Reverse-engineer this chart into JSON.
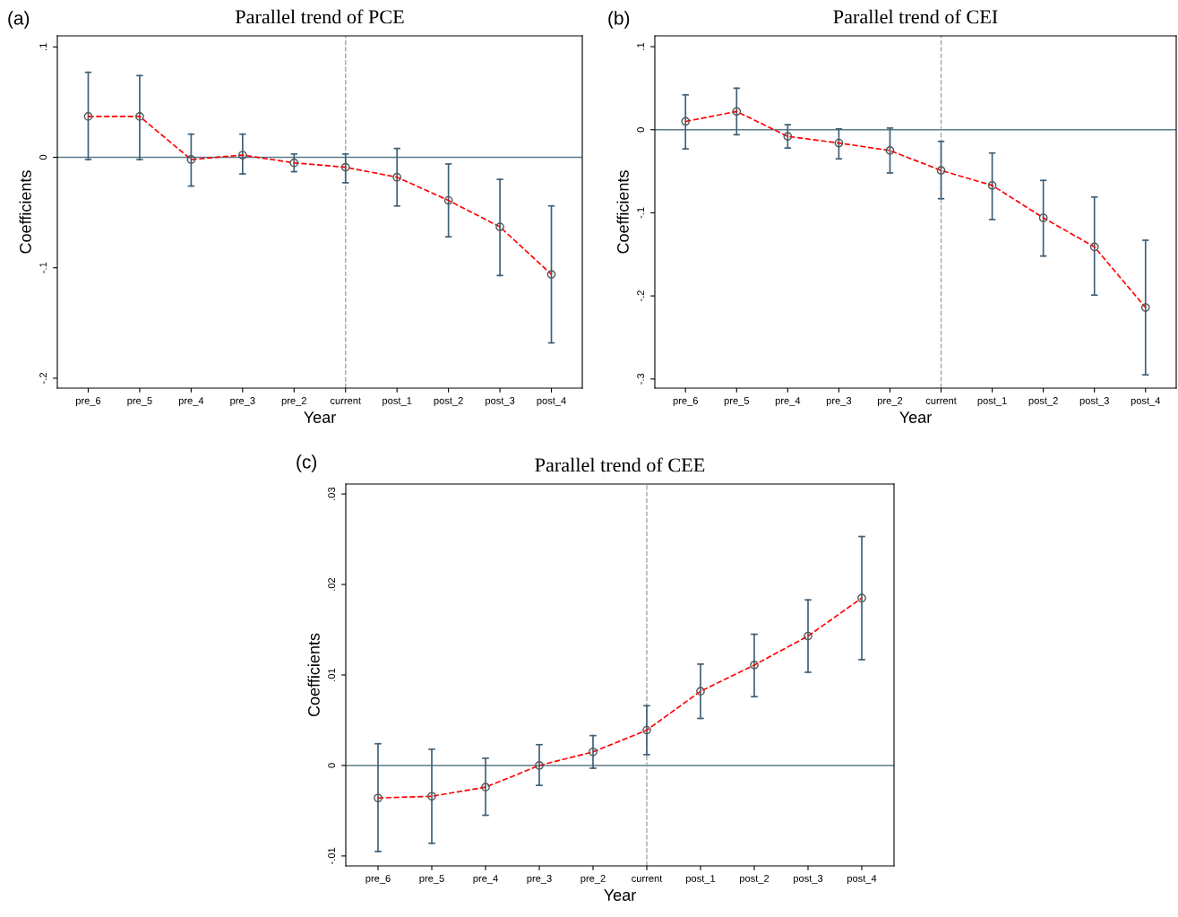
{
  "chart_data": [
    {
      "type": "line",
      "title": "Parallel trend of PCE",
      "xlabel": "Year",
      "ylabel": "Coefficients",
      "annotations": [
        "(a)"
      ],
      "categories": [
        "pre_6",
        "pre_5",
        "pre_4",
        "pre_3",
        "pre_2",
        "current",
        "post_1",
        "post_2",
        "post_3",
        "post_4"
      ],
      "series": [
        {
          "color": "#ff0000",
          "values": [
            0.037,
            0.037,
            -0.002,
            0.002,
            -0.005,
            -0.009,
            -0.018,
            -0.039,
            -0.063,
            -0.106
          ],
          "errors": [
            [
              -0.002,
              0.077
            ],
            [
              -0.002,
              0.074
            ],
            [
              -0.026,
              0.021
            ],
            [
              -0.015,
              0.021
            ],
            [
              -0.013,
              0.003
            ],
            [
              -0.023,
              0.003
            ],
            [
              -0.044,
              0.008
            ],
            [
              -0.072,
              -0.006
            ],
            [
              -0.107,
              -0.02
            ],
            [
              -0.168,
              -0.044
            ]
          ]
        }
      ],
      "ylim": [
        -0.209,
        0.11
      ],
      "yticks": [
        {
          "value": -0.2,
          "label": "-.2"
        },
        {
          "value": -0.1,
          "label": "-.1"
        },
        {
          "value": 0,
          "label": "0"
        },
        {
          "value": 0.1,
          "label": ".1"
        }
      ],
      "ref_lines": [
        {
          "axis": "y",
          "value": 0,
          "color": "#5a7a8a",
          "line_style": "solid"
        },
        {
          "axis": "x",
          "value": "current",
          "color": "#9aa8a8",
          "line_style": "dashed"
        }
      ],
      "marker": "circle",
      "line_style": "dashed",
      "grid": false
    },
    {
      "type": "line",
      "title": "Parallel trend of CEI",
      "xlabel": "Year",
      "ylabel": "Coefficients",
      "annotations": [
        "(b)"
      ],
      "categories": [
        "pre_6",
        "pre_5",
        "pre_4",
        "pre_3",
        "pre_2",
        "current",
        "post_1",
        "post_2",
        "post_3",
        "post_4"
      ],
      "series": [
        {
          "color": "#ff0000",
          "values": [
            0.01,
            0.022,
            -0.008,
            -0.016,
            -0.025,
            -0.049,
            -0.067,
            -0.106,
            -0.141,
            -0.214
          ],
          "errors": [
            [
              -0.023,
              0.042
            ],
            [
              -0.006,
              0.05
            ],
            [
              -0.022,
              0.006
            ],
            [
              -0.035,
              0.001
            ],
            [
              -0.052,
              0.002
            ],
            [
              -0.083,
              -0.014
            ],
            [
              -0.108,
              -0.028
            ],
            [
              -0.152,
              -0.061
            ],
            [
              -0.199,
              -0.081
            ],
            [
              -0.295,
              -0.133
            ]
          ]
        }
      ],
      "ylim": [
        -0.311,
        0.113
      ],
      "yticks": [
        {
          "value": -0.3,
          "label": "-.3"
        },
        {
          "value": -0.2,
          "label": "-.2"
        },
        {
          "value": -0.1,
          "label": "-.1"
        },
        {
          "value": 0,
          "label": "0"
        },
        {
          "value": 0.1,
          "label": ".1"
        }
      ],
      "ref_lines": [
        {
          "axis": "y",
          "value": 0,
          "color": "#5a7a8a",
          "line_style": "solid"
        },
        {
          "axis": "x",
          "value": "current",
          "color": "#9aa8a8",
          "line_style": "dashed"
        }
      ],
      "marker": "circle",
      "line_style": "dashed",
      "grid": false
    },
    {
      "type": "line",
      "title": "Parallel trend of CEE",
      "xlabel": "Year",
      "ylabel": "Coefficients",
      "annotations": [
        "(c)"
      ],
      "categories": [
        "pre_6",
        "pre_5",
        "pre_4",
        "pre_3",
        "pre_2",
        "current",
        "post_1",
        "post_2",
        "post_3",
        "post_4"
      ],
      "series": [
        {
          "color": "#ff0000",
          "values": [
            -0.0036,
            -0.0034,
            -0.0024,
            0.0,
            0.0015,
            0.0039,
            0.0082,
            0.0111,
            0.0143,
            0.0185
          ],
          "errors": [
            [
              -0.0095,
              0.0024
            ],
            [
              -0.0086,
              0.0018
            ],
            [
              -0.0055,
              0.0008
            ],
            [
              -0.0022,
              0.0023
            ],
            [
              -0.0003,
              0.0033
            ],
            [
              0.0012,
              0.0066
            ],
            [
              0.0052,
              0.0112
            ],
            [
              0.0076,
              0.0145
            ],
            [
              0.0103,
              0.0183
            ],
            [
              0.0117,
              0.0253
            ]
          ]
        }
      ],
      "ylim": [
        -0.0111,
        0.0311
      ],
      "yticks": [
        {
          "value": -0.01,
          "label": "-.01"
        },
        {
          "value": 0,
          "label": "0"
        },
        {
          "value": 0.01,
          "label": ".01"
        },
        {
          "value": 0.02,
          "label": ".02"
        },
        {
          "value": 0.03,
          "label": ".03"
        }
      ],
      "ref_lines": [
        {
          "axis": "y",
          "value": 0,
          "color": "#5a7a8a",
          "line_style": "solid"
        },
        {
          "axis": "x",
          "value": "current",
          "color": "#9aa8a8",
          "line_style": "dashed"
        }
      ],
      "marker": "circle",
      "line_style": "dashed",
      "grid": false
    }
  ]
}
